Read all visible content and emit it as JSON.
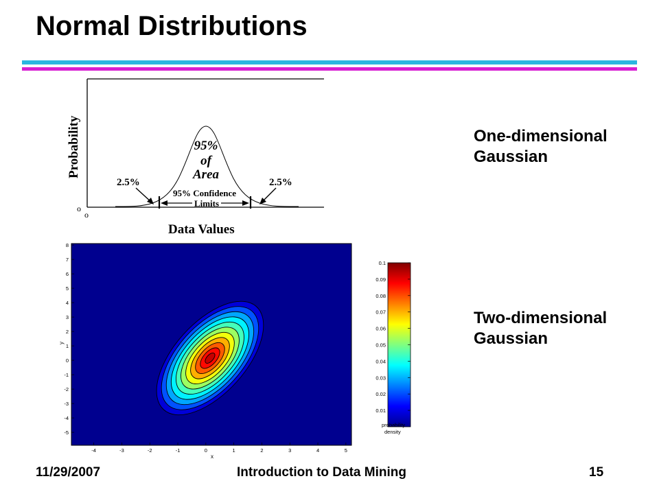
{
  "slide": {
    "title": "Normal Distributions",
    "label_1d": [
      "One-dimensional",
      "Gaussian"
    ],
    "label_2d": [
      "Two-dimensional",
      "Gaussian"
    ],
    "footer": {
      "date": "11/29/2007",
      "course": "Introduction to Data Mining",
      "page": "15"
    }
  },
  "figure_1d": {
    "ylabel": "Probability",
    "xlabel": "Data Values",
    "center_text": [
      "95%",
      "of",
      "Area"
    ],
    "left_tail": "2.5%",
    "right_tail": "2.5%",
    "confidence_text": [
      "95% Confidence",
      "Limits"
    ],
    "origin_marks": [
      "o",
      "o"
    ]
  },
  "chart_data": {
    "type": "heatmap",
    "xlabel": "x",
    "ylabel": "y",
    "xticks": [
      "-4",
      "-3",
      "-2",
      "-1",
      "0",
      "1",
      "2",
      "3",
      "4",
      "5"
    ],
    "yticks": [
      "8",
      "7",
      "6",
      "5",
      "4",
      "3",
      "2",
      "1",
      "0",
      "-1",
      "-2",
      "-3",
      "-4",
      "-5"
    ],
    "xlim": [
      -4.8,
      5.2
    ],
    "ylim": [
      -5.9,
      8.1
    ],
    "colorbar": {
      "ticks": [
        "0.1",
        "0.09",
        "0.08",
        "0.07",
        "0.06",
        "0.05",
        "0.04",
        "0.03",
        "0.02",
        "0.01"
      ],
      "range": [
        0,
        0.1
      ],
      "label": [
        "probability",
        "density"
      ]
    },
    "mean": [
      0.15,
      0.15
    ],
    "background_color": "#00008f"
  }
}
